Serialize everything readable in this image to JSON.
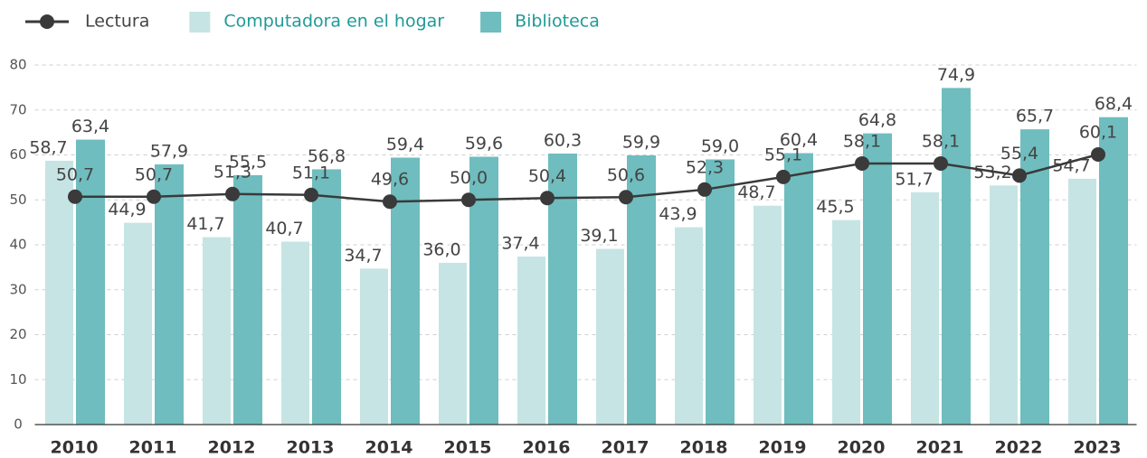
{
  "chart_data": {
    "type": "bar+line",
    "categories": [
      "2010",
      "2011",
      "2012",
      "2013",
      "2014",
      "2015",
      "2016",
      "2017",
      "2018",
      "2019",
      "2020",
      "2021",
      "2022",
      "2023"
    ],
    "series": [
      {
        "name": "Lectura",
        "type": "line",
        "color": "#3a3a3a",
        "values": [
          50.7,
          50.7,
          51.3,
          51.1,
          49.6,
          50.0,
          50.4,
          50.6,
          52.3,
          55.1,
          58.1,
          58.1,
          55.4,
          60.1
        ],
        "value_labels": [
          "50,7",
          "50,7",
          "51,3",
          "51,1",
          "49,6",
          "50,0",
          "50,4",
          "50,6",
          "52,3",
          "55,1",
          "58,1",
          "58,1",
          "55,4",
          "60,1"
        ]
      },
      {
        "name": "Computadora en el hogar",
        "type": "bar",
        "color": "#c6e4e4",
        "values": [
          58.7,
          44.9,
          41.7,
          40.7,
          34.7,
          36.0,
          37.4,
          39.1,
          43.9,
          48.7,
          45.5,
          51.7,
          53.2,
          54.7
        ],
        "value_labels": [
          "58,7",
          "44,9",
          "41,7",
          "40,7",
          "34,7",
          "36,0",
          "37,4",
          "39,1",
          "43,9",
          "48,7",
          "45,5",
          "51,7",
          "53,2",
          "54,7"
        ]
      },
      {
        "name": "Biblioteca",
        "type": "bar",
        "color": "#6fbdbf",
        "values": [
          63.4,
          57.9,
          55.5,
          56.8,
          59.4,
          59.6,
          60.3,
          59.9,
          59.0,
          60.4,
          64.8,
          74.9,
          65.7,
          68.4
        ],
        "value_labels": [
          "63,4",
          "57,9",
          "55,5",
          "56,8",
          "59,4",
          "59,6",
          "60,3",
          "59,9",
          "59,0",
          "60,4",
          "64,8",
          "74,9",
          "65,7",
          "68,4"
        ]
      }
    ],
    "ylim": [
      0,
      80
    ],
    "yticks": [
      0,
      10,
      20,
      30,
      40,
      50,
      60,
      70,
      80
    ],
    "grid": true,
    "legend": "top-left"
  }
}
